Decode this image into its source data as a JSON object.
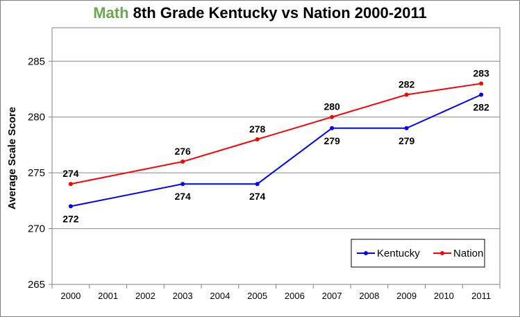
{
  "title": {
    "highlight": "Math",
    "highlight_color": "#6aa84f",
    "rest": " 8th Grade Kentucky vs Nation 2000-2011"
  },
  "chart_data": {
    "type": "line",
    "categories": [
      "2000",
      "2001",
      "2002",
      "2003",
      "2004",
      "2005",
      "2006",
      "2007",
      "2008",
      "2009",
      "2010",
      "2011"
    ],
    "ylabel": "Average Scale Score",
    "ylim": [
      265,
      288
    ],
    "yticks": [
      265,
      270,
      275,
      280,
      285
    ],
    "grid": true,
    "legend_position": "bottom-right",
    "series": [
      {
        "name": "Kentucky",
        "color": "#0000ff",
        "points": [
          [
            "2000",
            272
          ],
          [
            "2003",
            274
          ],
          [
            "2005",
            274
          ],
          [
            "2007",
            279
          ],
          [
            "2009",
            279
          ],
          [
            "2011",
            282
          ]
        ],
        "label_position": [
          "below",
          "below",
          "below",
          "below",
          "below",
          "below"
        ]
      },
      {
        "name": "Nation",
        "color": "#ff0000",
        "points": [
          [
            "2000",
            274
          ],
          [
            "2003",
            276
          ],
          [
            "2005",
            278
          ],
          [
            "2007",
            280
          ],
          [
            "2009",
            282
          ],
          [
            "2011",
            283
          ]
        ],
        "label_position": [
          "above",
          "above",
          "above",
          "above",
          "above",
          "above"
        ]
      }
    ]
  }
}
